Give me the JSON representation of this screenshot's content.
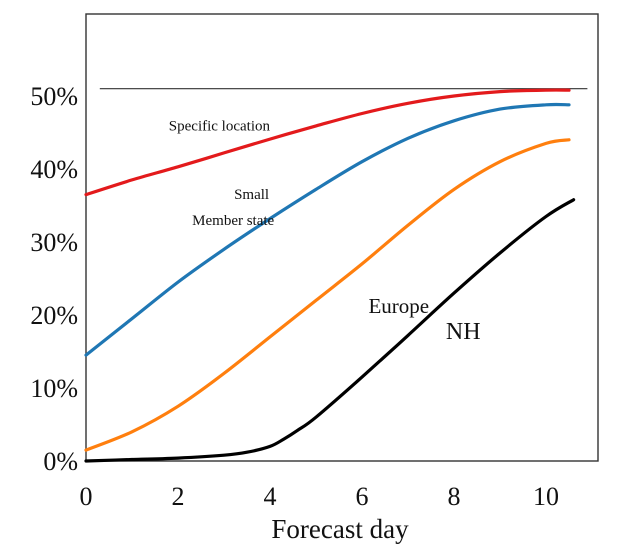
{
  "chart_data": {
    "type": "line",
    "title": "",
    "xlabel": "Forecast day",
    "ylabel": "",
    "xlim": [
      0,
      11.1
    ],
    "ylim": [
      0,
      60
    ],
    "x_ticks": [
      "0",
      "2",
      "4",
      "6",
      "8",
      "10"
    ],
    "y_ticks": [
      "0%",
      "10%",
      "20%",
      "30%",
      "40%",
      "50%"
    ],
    "reference_line": {
      "y": 51,
      "x": [
        0.3,
        10.9
      ]
    },
    "series": [
      {
        "color": "#e31a1c",
        "x": [
          0,
          1,
          2,
          3,
          4,
          5,
          6,
          7,
          8,
          9,
          10,
          10.5
        ],
        "y": [
          36.5,
          38.5,
          40.3,
          42.2,
          44.1,
          45.9,
          47.6,
          49.0,
          50.0,
          50.6,
          50.8,
          50.8
        ]
      },
      {
        "color": "#1f77b4",
        "x": [
          0,
          1,
          2,
          3,
          4,
          5,
          6,
          7,
          8,
          9,
          10,
          10.5
        ],
        "y": [
          14.5,
          19.5,
          24.5,
          29.0,
          33.2,
          37.2,
          41.0,
          44.2,
          46.6,
          48.2,
          48.8,
          48.8
        ]
      },
      {
        "color": "#ff7f0e",
        "x": [
          0,
          1,
          2,
          3,
          4,
          5,
          6,
          7,
          8,
          9,
          10,
          10.5
        ],
        "y": [
          1.5,
          4.0,
          7.5,
          12.0,
          17.0,
          22.0,
          27.0,
          32.3,
          37.2,
          41.0,
          43.5,
          44.0
        ]
      },
      {
        "color": "#000000",
        "x": [
          0,
          1,
          2,
          3,
          3.5,
          4,
          4.3,
          4.6,
          5,
          6,
          7,
          8,
          9,
          10,
          10.6
        ],
        "y": [
          0,
          0.2,
          0.4,
          0.8,
          1.2,
          2.0,
          3.0,
          4.2,
          6.0,
          11.5,
          17.2,
          23.0,
          28.5,
          33.5,
          35.8
        ]
      }
    ],
    "annotations": [
      {
        "text": "Specific location",
        "x": 2.9,
        "y": 45.3,
        "size": 15
      },
      {
        "text": "Small",
        "x": 3.6,
        "y": 35.9,
        "size": 15
      },
      {
        "text": "Member state",
        "x": 3.2,
        "y": 32.3,
        "size": 15
      },
      {
        "text": "Europe",
        "x": 6.8,
        "y": 20.3,
        "size": 21
      },
      {
        "text": "NH",
        "x": 8.2,
        "y": 16.7,
        "size": 24
      }
    ]
  }
}
